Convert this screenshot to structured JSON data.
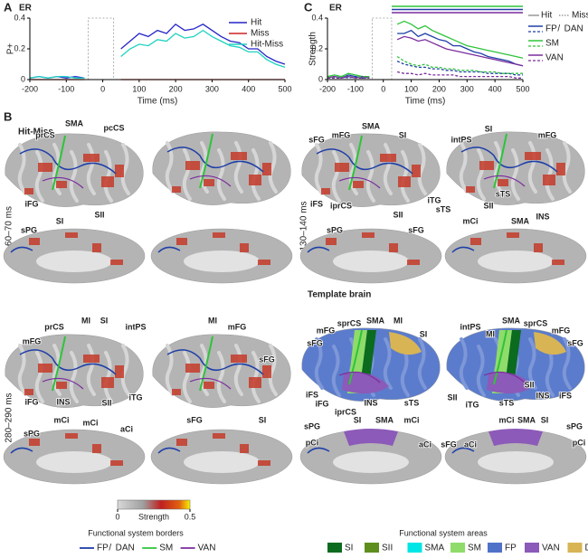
{
  "panel_letters": [
    "A",
    "B",
    "C"
  ],
  "chart_data": [
    {
      "type": "line",
      "title": "ER",
      "y_label": "P+",
      "x_label": "Time (ms)",
      "x": [
        -200,
        -175,
        -150,
        -125,
        -100,
        -75,
        -50,
        -25,
        0,
        25,
        50,
        75,
        100,
        125,
        150,
        175,
        200,
        225,
        250,
        275,
        300,
        325,
        350,
        375,
        400,
        425,
        450,
        475,
        500
      ],
      "xlim": [
        -200,
        500
      ],
      "xticks": [
        -200,
        -100,
        0,
        100,
        200,
        300,
        400,
        500
      ],
      "ylim": [
        0,
        0.4
      ],
      "yticks": [
        0,
        0.2,
        0.4
      ],
      "masked_window": [
        -40,
        30
      ],
      "legend": "upper right",
      "series": [
        {
          "name": "Hit",
          "color": "#2424c8",
          "values": [
            0.01,
            0.02,
            0.01,
            0.02,
            0.01,
            0.02,
            0.01,
            null,
            null,
            null,
            0.2,
            0.25,
            0.3,
            0.28,
            0.32,
            0.3,
            0.36,
            0.32,
            0.33,
            0.36,
            0.32,
            0.28,
            0.25,
            0.24,
            0.2,
            0.2,
            0.15,
            0.12,
            0.1
          ]
        },
        {
          "name": "Miss",
          "color": "#d02020",
          "values": [
            0,
            0,
            0,
            0,
            0,
            0,
            0,
            null,
            null,
            null,
            0,
            0,
            0,
            0,
            0,
            0,
            0,
            0,
            0,
            0,
            0,
            0,
            0,
            0,
            0,
            0,
            0,
            0,
            0
          ]
        },
        {
          "name": "Hit-Miss",
          "color": "#1ed2c0",
          "values": [
            0.01,
            0.02,
            0.01,
            0.02,
            0.02,
            0.01,
            0.01,
            null,
            null,
            null,
            0.15,
            0.2,
            0.23,
            0.22,
            0.26,
            0.25,
            0.3,
            0.27,
            0.28,
            0.32,
            0.28,
            0.25,
            0.22,
            0.21,
            0.18,
            0.18,
            0.13,
            0.1,
            0.08
          ]
        }
      ]
    },
    {
      "type": "line",
      "title": "ER",
      "y_label": "Strength",
      "x_label": "Time (ms)",
      "x": [
        -200,
        -175,
        -150,
        -125,
        -100,
        -75,
        -50,
        -25,
        0,
        25,
        50,
        75,
        100,
        125,
        150,
        175,
        200,
        225,
        250,
        275,
        300,
        325,
        350,
        375,
        400,
        425,
        450,
        475,
        500
      ],
      "xlim": [
        -200,
        500
      ],
      "xticks": [
        -200,
        -100,
        0,
        100,
        200,
        300,
        400,
        500
      ],
      "ylim": [
        0,
        0.4
      ],
      "yticks": [
        0,
        0.2,
        0.4
      ],
      "masked_window": [
        -40,
        30
      ],
      "sig_bars": [
        {
          "color": "#2ec43a",
          "x": [
            30,
            500
          ]
        },
        {
          "color": "#1f3fa8",
          "x": [
            30,
            500
          ]
        },
        {
          "color": "#7a2c9e",
          "x": [
            30,
            500
          ]
        }
      ],
      "legend_conditions": [
        {
          "text": "Hit",
          "dash": false
        },
        {
          "text": "Miss",
          "dash": true
        }
      ],
      "legend_systems": [
        {
          "color": "#1f3fa8",
          "parts": [
            [
              "FP",
              "#1f3fa8"
            ],
            [
              "/",
              "#222222"
            ],
            [
              "DAN",
              "#e8a800"
            ]
          ]
        },
        {
          "color": "#2ec43a",
          "parts": [
            [
              "SM",
              "#2ec43a"
            ]
          ]
        },
        {
          "color": "#7a2c9e",
          "parts": [
            [
              "VAN",
              "#7a2c9e"
            ]
          ]
        }
      ],
      "series": [
        {
          "color": "#1f3fa8",
          "dash": false,
          "values": [
            0.01,
            0.02,
            0.01,
            0.03,
            0.02,
            0.01,
            0.02,
            null,
            null,
            null,
            0.3,
            0.3,
            0.32,
            0.28,
            0.3,
            0.28,
            0.26,
            0.25,
            0.22,
            0.22,
            0.2,
            0.18,
            0.17,
            0.15,
            0.14,
            0.13,
            0.12,
            0.1,
            0.09
          ]
        },
        {
          "color": "#2ec43a",
          "dash": false,
          "values": [
            0.02,
            0.03,
            0.02,
            0.04,
            0.03,
            0.02,
            0.02,
            null,
            null,
            null,
            0.36,
            0.38,
            0.36,
            0.33,
            0.35,
            0.32,
            0.3,
            0.28,
            0.26,
            0.24,
            0.22,
            0.21,
            0.2,
            0.19,
            0.18,
            0.17,
            0.16,
            0.15,
            0.14
          ]
        },
        {
          "color": "#7a2c9e",
          "dash": false,
          "values": [
            0.01,
            0.02,
            0.01,
            0.02,
            0.01,
            0.02,
            0.01,
            null,
            null,
            null,
            0.26,
            0.28,
            0.27,
            0.25,
            0.26,
            0.24,
            0.22,
            0.2,
            0.19,
            0.18,
            0.17,
            0.16,
            0.15,
            0.14,
            0.13,
            0.12,
            0.11,
            0.1,
            0.09
          ]
        },
        {
          "color": "#1f3fa8",
          "dash": true,
          "values": [
            0.01,
            0.01,
            0.02,
            0.01,
            0.02,
            0.01,
            0.01,
            null,
            null,
            null,
            0.12,
            0.1,
            0.09,
            0.08,
            0.08,
            0.07,
            0.07,
            0.06,
            0.06,
            0.05,
            0.05,
            0.05,
            0.05,
            0.04,
            0.04,
            0.04,
            0.04,
            0.03,
            0.03
          ]
        },
        {
          "color": "#2ec43a",
          "dash": true,
          "values": [
            0.02,
            0.01,
            0.02,
            0.02,
            0.01,
            0.02,
            0.01,
            null,
            null,
            null,
            0.15,
            0.12,
            0.1,
            0.09,
            0.1,
            0.08,
            0.08,
            0.07,
            0.07,
            0.06,
            0.06,
            0.06,
            0.05,
            0.05,
            0.05,
            0.04,
            0.04,
            0.04,
            0.04
          ]
        },
        {
          "color": "#7a2c9e",
          "dash": true,
          "values": [
            0.01,
            0.01,
            0.01,
            0.02,
            0.01,
            0.01,
            0.01,
            null,
            null,
            null,
            0.05,
            0.04,
            0.04,
            0.03,
            0.04,
            0.03,
            0.03,
            0.03,
            0.03,
            0.02,
            0.02,
            0.02,
            0.02,
            0.02,
            0.02,
            0.02,
            0.02,
            0.01,
            0.01
          ]
        }
      ]
    }
  ],
  "panel_titles": [
    "Hit-Miss",
    "Template brain"
  ],
  "row_labels": [
    "60–70 ms",
    "130–140 ms",
    "280–290 ms"
  ],
  "brain_panels": [
    {
      "labels": [
        [
          "SMA",
          "#00d8e8"
        ],
        [
          "pcCS",
          "#2ec43a"
        ],
        [
          "prCS",
          "#1f3fa8"
        ],
        [
          "iFG",
          "#1f3fa8"
        ],
        [
          "SII",
          "#1a6e10"
        ],
        [
          "sPG",
          "#e8a800"
        ],
        [
          "SI",
          "#1a6e10"
        ]
      ]
    },
    {
      "labels": [
        [
          "sFG",
          "#9a9a9a"
        ],
        [
          "mFG",
          "#1f3fa8"
        ],
        [
          "SMA",
          "#00d8e8"
        ],
        [
          "SI",
          "#1a6e10"
        ],
        [
          "intPS",
          "#e8a800"
        ],
        [
          "SI",
          "#1a6e10"
        ],
        [
          "mFG",
          "#1f3fa8"
        ],
        [
          "iFS",
          "#1f3fa8"
        ],
        [
          "iprCS",
          "#e8a800"
        ],
        [
          "SII",
          "#1a6e10"
        ],
        [
          "iTG",
          "#e8a800"
        ],
        [
          "sTS",
          "#9a9a9a"
        ],
        [
          "SII",
          "#1a6e10"
        ],
        [
          "sTS",
          "#9a9a9a"
        ],
        [
          "INS",
          "#7a2c9e"
        ],
        [
          "sPG",
          "#e8a800"
        ],
        [
          "sFG",
          "#9a9a9a"
        ],
        [
          "mCi",
          "#7a2c9e"
        ],
        [
          "SMA",
          "#00d8e8"
        ]
      ]
    },
    {
      "labels": [
        [
          "prCS",
          "#1f3fa8"
        ],
        [
          "MI",
          "#2ec43a"
        ],
        [
          "SI",
          "#1a6e10"
        ],
        [
          "intPS",
          "#e8a800"
        ],
        [
          "mFG",
          "#1f3fa8"
        ],
        [
          "MI",
          "#2ec43a"
        ],
        [
          "mFG",
          "#1f3fa8"
        ],
        [
          "sFG",
          "#9a9a9a"
        ],
        [
          "iFG",
          "#1f3fa8"
        ],
        [
          "INS",
          "#7a2c9e"
        ],
        [
          "SII",
          "#1a6e10"
        ],
        [
          "iTG",
          "#e8a800"
        ],
        [
          "sPG",
          "#e8a800"
        ],
        [
          "mCi",
          "#7a2c9e"
        ],
        [
          "mCi",
          "#7a2c9e"
        ],
        [
          "aCi",
          "#9a9a9a"
        ],
        [
          "sFG",
          "#9a9a9a"
        ],
        [
          "SI",
          "#1a6e10"
        ]
      ]
    },
    {
      "labels": [
        [
          "sprCS",
          "#e8a800"
        ],
        [
          "SMA",
          "#00d8e8"
        ],
        [
          "MI",
          "#2ec43a"
        ],
        [
          "SI",
          "#1a6e10"
        ],
        [
          "intPS",
          "#e8a800"
        ],
        [
          "MI",
          "#2ec43a"
        ],
        [
          "SMA",
          "#00d8e8"
        ],
        [
          "sprCS",
          "#e8a800"
        ],
        [
          "mFG",
          "#1f3fa8"
        ],
        [
          "sFG",
          "#9a9a9a"
        ],
        [
          "mFG",
          "#1f3fa8"
        ],
        [
          "sFG",
          "#9a9a9a"
        ],
        [
          "iFS",
          "#1f3fa8"
        ],
        [
          "iFG",
          "#1f3fa8"
        ],
        [
          "iprCS",
          "#e8a800"
        ],
        [
          "INS",
          "#7a2c9e"
        ],
        [
          "sTS",
          "#9a9a9a"
        ],
        [
          "SII",
          "#1a6e10"
        ],
        [
          "iTG",
          "#e8a800"
        ],
        [
          "sTS",
          "#9a9a9a"
        ],
        [
          "SII",
          "#1a6e10"
        ],
        [
          "INS",
          "#7a2c9e"
        ],
        [
          "iFS",
          "#1f3fa8"
        ],
        [
          "sPG",
          "#e8a800"
        ],
        [
          "SI",
          "#1a6e10"
        ],
        [
          "SMA",
          "#00d8e8"
        ],
        [
          "mCi",
          "#7a2c9e"
        ],
        [
          "aCi",
          "#9a9a9a"
        ],
        [
          "sFG",
          "#9a9a9a"
        ],
        [
          "aCi",
          "#9a9a9a"
        ],
        [
          "mCi",
          "#7a2c9e"
        ],
        [
          "SMA",
          "#00d8e8"
        ],
        [
          "SI",
          "#1a6e10"
        ],
        [
          "sPG",
          "#e8a800"
        ],
        [
          "pCi",
          "#9a9a9a"
        ],
        [
          "pCi",
          "#9a9a9a"
        ]
      ]
    }
  ],
  "colorbar": {
    "label": "Strength",
    "ticks": [
      0,
      0.5
    ]
  },
  "border_legend": {
    "title": "Functional system borders",
    "items": [
      {
        "color": "#1f3fa8",
        "parts": [
          [
            "FP",
            "#1f3fa8"
          ],
          [
            "/",
            "#222222"
          ],
          [
            "DAN",
            "#e8a800"
          ]
        ]
      },
      {
        "color": "#2ec43a",
        "parts": [
          [
            "SM",
            "#2ec43a"
          ]
        ]
      },
      {
        "color": "#7a2c9e",
        "parts": [
          [
            "VAN",
            "#7a2c9e"
          ]
        ]
      }
    ]
  },
  "area_legend": {
    "title": "Functional system areas",
    "items": [
      [
        "SI",
        "#0b6b1f"
      ],
      [
        "SII",
        "#5e8f1e"
      ],
      [
        "SMA",
        "#00e5e5"
      ],
      [
        "SM",
        "#8fdc6a"
      ],
      [
        "FP",
        "#4f72c8"
      ],
      [
        "VAN",
        "#8c5ab8"
      ],
      [
        "DAN",
        "#d8b455"
      ]
    ]
  }
}
